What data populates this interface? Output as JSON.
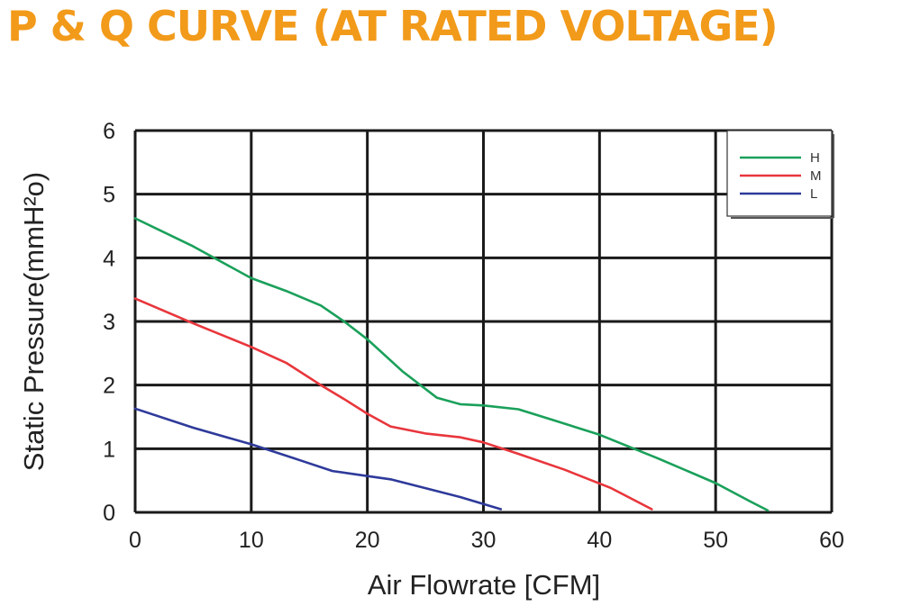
{
  "title": "P & Q CURVE (AT RATED VOLTAGE)",
  "chart_data": {
    "type": "line",
    "xlabel": "Air  Flowrate   [CFM]",
    "ylabel": "Static Pressure(mmH²o)",
    "xlim": [
      0,
      60
    ],
    "ylim": [
      0,
      6
    ],
    "x_ticks": [
      "0",
      "10",
      "20",
      "30",
      "40",
      "50",
      "60"
    ],
    "y_ticks": [
      "0",
      "1",
      "2",
      "3",
      "4",
      "5",
      "6"
    ],
    "grid": true,
    "legend_position": "top-right",
    "series": [
      {
        "name": "H",
        "color": "#1aa05a",
        "points": [
          [
            0,
            4.62
          ],
          [
            5,
            4.18
          ],
          [
            10,
            3.68
          ],
          [
            13,
            3.48
          ],
          [
            16,
            3.25
          ],
          [
            18,
            3.0
          ],
          [
            20,
            2.72
          ],
          [
            23,
            2.22
          ],
          [
            26,
            1.8
          ],
          [
            28,
            1.7
          ],
          [
            30,
            1.68
          ],
          [
            33,
            1.62
          ],
          [
            36,
            1.45
          ],
          [
            40,
            1.22
          ],
          [
            45,
            0.85
          ],
          [
            50,
            0.46
          ],
          [
            53,
            0.17
          ],
          [
            54.5,
            0.03
          ]
        ]
      },
      {
        "name": "M",
        "color": "#e8363c",
        "points": [
          [
            0,
            3.36
          ],
          [
            5,
            2.97
          ],
          [
            10,
            2.6
          ],
          [
            13,
            2.35
          ],
          [
            16,
            2.0
          ],
          [
            18,
            1.78
          ],
          [
            20,
            1.55
          ],
          [
            22,
            1.35
          ],
          [
            25,
            1.24
          ],
          [
            28,
            1.18
          ],
          [
            30,
            1.1
          ],
          [
            33,
            0.92
          ],
          [
            37,
            0.67
          ],
          [
            41,
            0.38
          ],
          [
            44.5,
            0.05
          ]
        ]
      },
      {
        "name": "L",
        "color": "#2e3a9a",
        "points": [
          [
            0,
            1.63
          ],
          [
            5,
            1.33
          ],
          [
            10,
            1.07
          ],
          [
            14,
            0.83
          ],
          [
            17,
            0.65
          ],
          [
            20,
            0.57
          ],
          [
            22,
            0.52
          ],
          [
            25,
            0.38
          ],
          [
            28,
            0.24
          ],
          [
            31.5,
            0.05
          ]
        ]
      }
    ]
  }
}
